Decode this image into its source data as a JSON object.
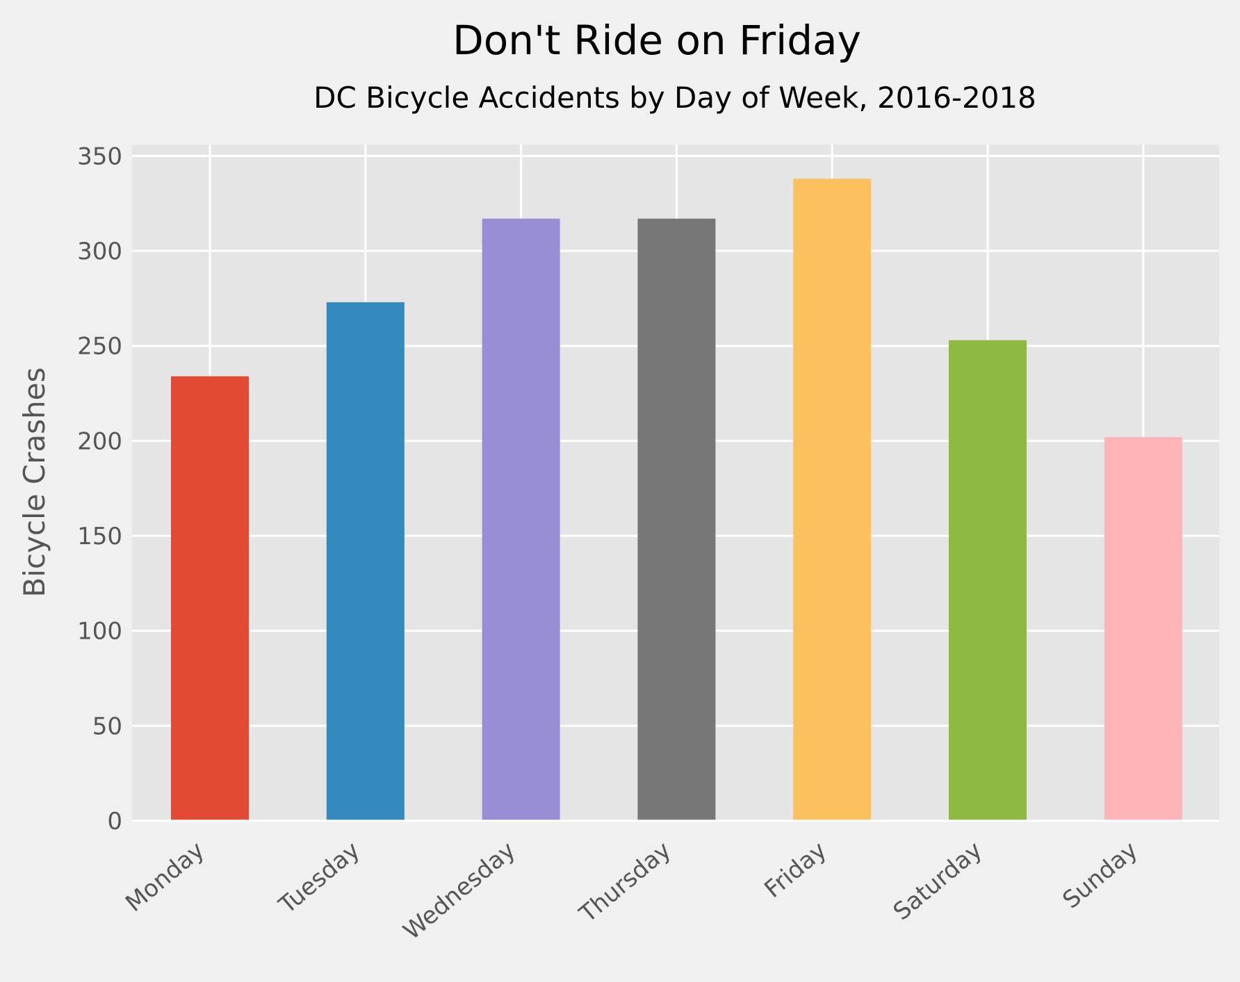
{
  "chart_data": {
    "type": "bar",
    "title": "Don't Ride on Friday",
    "subtitle": "DC Bicycle Accidents by Day of Week, 2016-2018",
    "xlabel": "",
    "ylabel": "Bicycle Crashes",
    "categories": [
      "Monday",
      "Tuesday",
      "Wednesday",
      "Thursday",
      "Friday",
      "Saturday",
      "Sunday"
    ],
    "values": [
      234,
      273,
      317,
      317,
      338,
      253,
      202
    ],
    "colors": [
      "#E24A33",
      "#348ABD",
      "#988ED5",
      "#777777",
      "#FBC15E",
      "#8EBA42",
      "#FFB5B8"
    ],
    "yticks": [
      "0",
      "50",
      "100",
      "150",
      "200",
      "250",
      "300",
      "350"
    ],
    "ylim": [
      0,
      356
    ],
    "grid": true,
    "legend": "none",
    "background_color": "#f0f0f0",
    "plot_background_color": "#e5e5e5",
    "grid_color": "#ffffff"
  }
}
